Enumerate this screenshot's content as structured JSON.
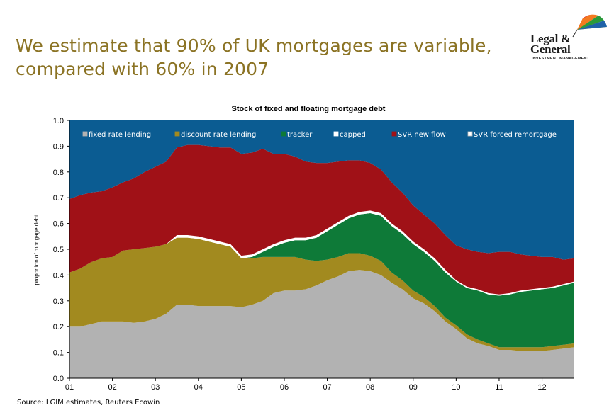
{
  "headline": {
    "line1": "We estimate that 90% of UK mortgages are variable,",
    "line2": "compared with 60% in 2007"
  },
  "logo": {
    "line1": "Legal &",
    "line2": "General",
    "sub": "INVESTMENT MANAGEMENT"
  },
  "source": "Source: LGIM estimates, Reuters Ecowin",
  "chart_data": {
    "type": "area",
    "stacked": true,
    "title": "Stock of fixed and floating mortgage debt",
    "ylabel": "proportion of mortgage debt",
    "xlabel": "",
    "ylim": [
      0,
      1
    ],
    "xlim": [
      2001,
      2012.75
    ],
    "x_ticks": [
      {
        "value": 2001,
        "label": "01"
      },
      {
        "value": 2002,
        "label": "02"
      },
      {
        "value": 2003,
        "label": "03"
      },
      {
        "value": 2004,
        "label": "04"
      },
      {
        "value": 2005,
        "label": "05"
      },
      {
        "value": 2006,
        "label": "06"
      },
      {
        "value": 2007,
        "label": "07"
      },
      {
        "value": 2008,
        "label": "08"
      },
      {
        "value": 2009,
        "label": "09"
      },
      {
        "value": 2010,
        "label": "10"
      },
      {
        "value": 2011,
        "label": "11"
      },
      {
        "value": 2012,
        "label": "12"
      }
    ],
    "y_ticks": [
      "0.0",
      "0.1",
      "0.2",
      "0.3",
      "0.4",
      "0.5",
      "0.6",
      "0.7",
      "0.8",
      "0.9",
      "1.0"
    ],
    "grid": false,
    "legend_position": "top",
    "x": [
      2001,
      2001.25,
      2001.5,
      2001.75,
      2002,
      2002.25,
      2002.5,
      2002.75,
      2003,
      2003.25,
      2003.5,
      2003.75,
      2004,
      2004.25,
      2004.5,
      2004.75,
      2005,
      2005.25,
      2005.5,
      2005.75,
      2006,
      2006.25,
      2006.5,
      2006.75,
      2007,
      2007.25,
      2007.5,
      2007.75,
      2008,
      2008.25,
      2008.5,
      2008.75,
      2009,
      2009.25,
      2009.5,
      2009.75,
      2010,
      2010.25,
      2010.5,
      2010.75,
      2011,
      2011.25,
      2011.5,
      2011.75,
      2012,
      2012.25,
      2012.5,
      2012.75
    ],
    "series": [
      {
        "name": "fixed rate lending",
        "color": "#b2b2b2",
        "values": [
          0.2,
          0.2,
          0.21,
          0.22,
          0.22,
          0.22,
          0.215,
          0.22,
          0.23,
          0.25,
          0.285,
          0.285,
          0.28,
          0.28,
          0.28,
          0.28,
          0.275,
          0.285,
          0.3,
          0.33,
          0.34,
          0.34,
          0.345,
          0.36,
          0.38,
          0.395,
          0.415,
          0.42,
          0.415,
          0.4,
          0.37,
          0.345,
          0.31,
          0.29,
          0.26,
          0.22,
          0.19,
          0.155,
          0.135,
          0.125,
          0.11,
          0.11,
          0.105,
          0.105,
          0.105,
          0.11,
          0.115,
          0.12
        ]
      },
      {
        "name": "discount rate lending",
        "color": "#a28a1f",
        "values": [
          0.21,
          0.225,
          0.24,
          0.245,
          0.25,
          0.275,
          0.285,
          0.285,
          0.28,
          0.27,
          0.26,
          0.26,
          0.26,
          0.25,
          0.24,
          0.23,
          0.19,
          0.18,
          0.17,
          0.14,
          0.13,
          0.13,
          0.115,
          0.095,
          0.08,
          0.075,
          0.07,
          0.065,
          0.06,
          0.055,
          0.04,
          0.035,
          0.03,
          0.025,
          0.02,
          0.015,
          0.015,
          0.015,
          0.015,
          0.01,
          0.01,
          0.01,
          0.015,
          0.015,
          0.015,
          0.015,
          0.015,
          0.015
        ]
      },
      {
        "name": "tracker",
        "color": "#0e7a38",
        "values": [
          0,
          0,
          0,
          0,
          0,
          0,
          0,
          0,
          0,
          0,
          0,
          0,
          0,
          0,
          0,
          0,
          0,
          0.005,
          0.02,
          0.04,
          0.055,
          0.065,
          0.075,
          0.09,
          0.11,
          0.125,
          0.135,
          0.15,
          0.165,
          0.175,
          0.18,
          0.18,
          0.18,
          0.175,
          0.175,
          0.175,
          0.17,
          0.18,
          0.19,
          0.19,
          0.2,
          0.205,
          0.215,
          0.22,
          0.225,
          0.225,
          0.23,
          0.235
        ]
      },
      {
        "name": "capped",
        "color": "#ffffff",
        "values": [
          0,
          0,
          0,
          0,
          0,
          0,
          0,
          0,
          0,
          0,
          0.01,
          0.01,
          0.01,
          0.01,
          0.01,
          0.01,
          0.01,
          0.01,
          0.01,
          0.01,
          0.01,
          0.01,
          0.01,
          0.01,
          0.01,
          0.01,
          0.01,
          0.01,
          0.01,
          0.01,
          0.01,
          0.01,
          0.01,
          0.01,
          0.01,
          0.01,
          0.005,
          0.005,
          0.005,
          0.005,
          0.005,
          0.005,
          0.005,
          0.005,
          0.005,
          0.005,
          0.005,
          0.005
        ]
      },
      {
        "name": "SVR new flow",
        "color": "#a01117",
        "values": [
          0.285,
          0.285,
          0.27,
          0.26,
          0.27,
          0.265,
          0.275,
          0.295,
          0.31,
          0.32,
          0.34,
          0.35,
          0.355,
          0.36,
          0.365,
          0.375,
          0.395,
          0.395,
          0.39,
          0.35,
          0.335,
          0.315,
          0.295,
          0.28,
          0.255,
          0.235,
          0.215,
          0.2,
          0.185,
          0.17,
          0.16,
          0.15,
          0.14,
          0.135,
          0.135,
          0.135,
          0.135,
          0.145,
          0.145,
          0.155,
          0.165,
          0.16,
          0.14,
          0.13,
          0.12,
          0.115,
          0.095,
          0.09
        ]
      },
      {
        "name": "SVR forced remortgage",
        "color": "#0b5c92",
        "legend_color": "#ffffff",
        "legend_border": "#c0c0c0",
        "values": [
          0.305,
          0.29,
          0.28,
          0.275,
          0.26,
          0.24,
          0.225,
          0.2,
          0.18,
          0.16,
          0.105,
          0.095,
          0.095,
          0.1,
          0.105,
          0.105,
          0.13,
          0.125,
          0.11,
          0.13,
          0.13,
          0.14,
          0.16,
          0.165,
          0.165,
          0.16,
          0.155,
          0.155,
          0.165,
          0.19,
          0.24,
          0.28,
          0.33,
          0.365,
          0.41,
          0.445,
          0.485,
          0.5,
          0.51,
          0.515,
          0.51,
          0.51,
          0.52,
          0.525,
          0.53,
          0.53,
          0.54,
          0.535
        ]
      }
    ]
  }
}
